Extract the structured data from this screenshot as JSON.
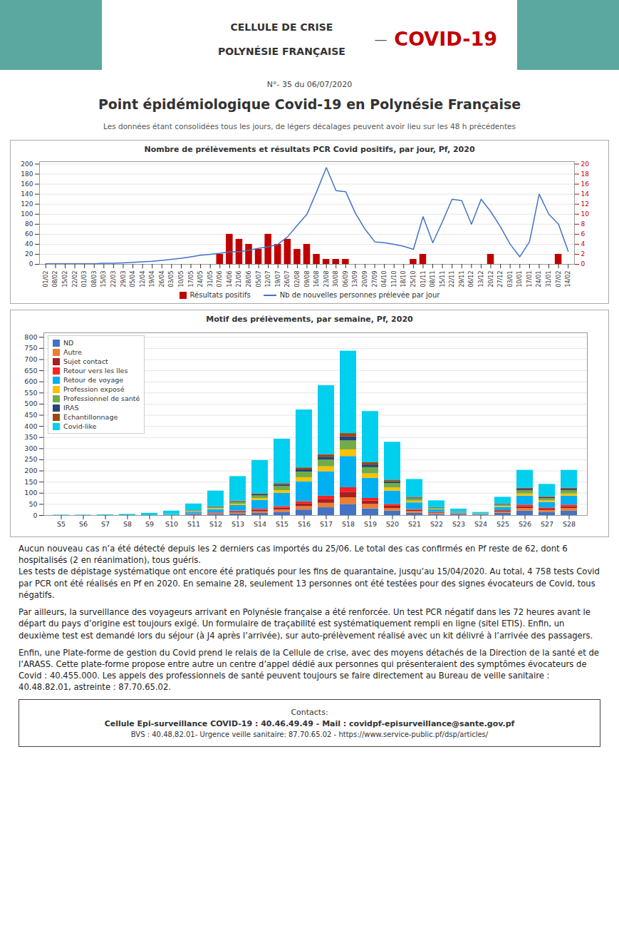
{
  "header_text1": "CELLULE DE CRISE",
  "header_text2": "POLYNÉSIE FRANÇAISE",
  "header_separator": "—",
  "covid_label": "COVID-19",
  "covid_color": "#c00000",
  "teal_color": "#5ba8a0",
  "numero": "N°- 35 du 06/07/2020",
  "title": "Point épidémiologique Covid-19 en Polynésie Française",
  "subtitle": "Les données étant consolidées tous les jours, de légers décalages peuvent avoir lieu sur les 48 h précédentes",
  "chart_data": [
    {
      "type": "bar",
      "title": "Nombre de prélèvements et résultats PCR Covid positifs, par jour, Pf, 2020",
      "categories": [
        "01/02",
        "08/02",
        "15/02",
        "22/02",
        "01/03",
        "08/03",
        "15/03",
        "22/03",
        "29/03",
        "05/04",
        "12/04",
        "19/04",
        "26/04",
        "03/05",
        "10/05",
        "17/05",
        "24/05",
        "31/05",
        "07/06",
        "14/06",
        "21/06",
        "28/06",
        "05/07",
        "12/07",
        "19/07",
        "26/07",
        "02/08",
        "09/08",
        "16/08",
        "23/08",
        "30/08",
        "06/09",
        "13/09",
        "20/09",
        "27/09",
        "04/10",
        "11/10",
        "18/10",
        "25/10",
        "01/11",
        "08/11",
        "15/11",
        "22/11",
        "29/11",
        "06/12",
        "13/12",
        "20/12",
        "27/12",
        "03/01",
        "10/01",
        "17/01",
        "24/01",
        "31/01",
        "07/02",
        "14/02"
      ],
      "series": [
        {
          "name": "Résultats positifs",
          "type": "bar",
          "color": "#c00000",
          "axis": "y2",
          "values": [
            0,
            0,
            0,
            0,
            0,
            0,
            0,
            0,
            0,
            0,
            0,
            0,
            0,
            0,
            0,
            0,
            0,
            0,
            2,
            6,
            5,
            4,
            3,
            6,
            4,
            5,
            3,
            4,
            2,
            1,
            1,
            1,
            0,
            0,
            0,
            0,
            0,
            0,
            1,
            2,
            0,
            0,
            0,
            0,
            0,
            0,
            2,
            0,
            0,
            0,
            0,
            0,
            0,
            2,
            0
          ]
        },
        {
          "name": "Nb de nouvelles personnes prélevée par jour",
          "type": "line",
          "color": "#4472c4",
          "values": [
            1,
            1,
            1,
            1,
            1,
            1,
            2,
            2,
            3,
            4,
            5,
            6,
            8,
            10,
            12,
            15,
            18,
            20,
            22,
            25,
            25,
            28,
            32,
            35,
            40,
            55,
            78,
            100,
            145,
            193,
            147,
            145,
            102,
            70,
            45,
            43,
            40,
            36,
            30,
            95,
            43,
            85,
            130,
            127,
            80,
            130,
            105,
            75,
            40,
            15,
            45,
            140,
            100,
            80,
            26
          ]
        }
      ],
      "ylim": [
        0,
        205
      ],
      "yticks": [
        0,
        20,
        40,
        60,
        80,
        100,
        120,
        140,
        160,
        180,
        200
      ],
      "y2lim": [
        0,
        20.5
      ],
      "y2ticks": [
        0,
        2,
        4,
        6,
        8,
        10,
        12,
        14,
        16,
        18,
        20
      ],
      "grid": true,
      "legend": "bottom"
    },
    {
      "type": "bar",
      "stacked": true,
      "title": "Motif des prélèvements, par semaine, Pf, 2020",
      "categories": [
        "S5",
        "S6",
        "S7",
        "S8",
        "S9",
        "S10",
        "S11",
        "S12",
        "S13",
        "S14",
        "S15",
        "S16",
        "S17",
        "S18",
        "S19",
        "S20",
        "S21",
        "S22",
        "S23",
        "S24",
        "S25",
        "S26",
        "S27",
        "S28"
      ],
      "series": [
        {
          "name": "ND",
          "color": "#4472c4",
          "values": [
            0,
            0,
            0,
            0,
            0,
            0,
            3,
            5,
            8,
            10,
            15,
            25,
            35,
            50,
            30,
            20,
            10,
            5,
            3,
            2,
            10,
            20,
            15,
            20
          ]
        },
        {
          "name": "Autre",
          "color": "#ed7d31",
          "values": [
            0,
            0,
            0,
            0,
            0,
            0,
            2,
            3,
            5,
            7,
            10,
            15,
            20,
            30,
            20,
            12,
            8,
            4,
            2,
            1,
            5,
            12,
            8,
            12
          ]
        },
        {
          "name": "Sujet contact",
          "color": "#a52020",
          "values": [
            0,
            0,
            0,
            0,
            0,
            0,
            1,
            2,
            4,
            6,
            8,
            12,
            18,
            25,
            15,
            10,
            5,
            3,
            1,
            1,
            4,
            8,
            6,
            8
          ]
        },
        {
          "name": "Retour vers les îles",
          "color": "#ff2020",
          "values": [
            0,
            0,
            0,
            0,
            0,
            0,
            1,
            2,
            3,
            5,
            7,
            10,
            14,
            20,
            12,
            8,
            4,
            2,
            1,
            0,
            3,
            7,
            5,
            7
          ]
        },
        {
          "name": "Retour de voyage",
          "color": "#00b0f0",
          "values": [
            0,
            0,
            0,
            0,
            0,
            3,
            8,
            15,
            25,
            40,
            60,
            90,
            110,
            140,
            90,
            60,
            30,
            12,
            5,
            3,
            15,
            40,
            25,
            40
          ]
        },
        {
          "name": "Profession exposé",
          "color": "#ffc000",
          "values": [
            0,
            0,
            0,
            0,
            0,
            1,
            2,
            4,
            6,
            8,
            12,
            18,
            22,
            30,
            20,
            14,
            8,
            3,
            1,
            1,
            4,
            10,
            7,
            10
          ]
        },
        {
          "name": "Professionnel de santé",
          "color": "#70ad47",
          "values": [
            0,
            0,
            0,
            0,
            0,
            1,
            3,
            5,
            8,
            12,
            18,
            25,
            30,
            40,
            28,
            20,
            10,
            4,
            2,
            1,
            6,
            14,
            10,
            14
          ]
        },
        {
          "name": "IRAS",
          "color": "#264478",
          "values": [
            0,
            0,
            0,
            0,
            0,
            0,
            1,
            2,
            3,
            5,
            7,
            10,
            13,
            18,
            12,
            8,
            4,
            2,
            1,
            0,
            3,
            7,
            5,
            7
          ]
        },
        {
          "name": "Echantillonnage",
          "color": "#9e480e",
          "values": [
            0,
            0,
            0,
            0,
            0,
            0,
            1,
            2,
            3,
            4,
            6,
            9,
            11,
            15,
            10,
            7,
            3,
            1,
            1,
            0,
            2,
            5,
            4,
            5
          ]
        },
        {
          "name": "Covid-like",
          "color": "#00cfee",
          "values": [
            2,
            2,
            3,
            5,
            10,
            15,
            30,
            70,
            110,
            150,
            200,
            260,
            310,
            370,
            230,
            170,
            80,
            30,
            12,
            5,
            30,
            80,
            55,
            80
          ]
        }
      ],
      "ylim": [
        0,
        820
      ],
      "yticks": [
        0,
        50,
        100,
        150,
        200,
        250,
        300,
        350,
        400,
        450,
        500,
        550,
        600,
        650,
        700,
        750,
        800
      ],
      "grid": true,
      "legend": "upper left"
    }
  ],
  "body": [
    "Aucun nouveau cas n’a été détecté depuis les 2 derniers cas importés du 25/06. Le total des cas confirmés en Pf reste de 62, dont 6 hospitalisés (2 en réanimation), tous guéris.\nLes tests de dépistage systématique ont encore été pratiqués pour les fins de quarantaine, jusqu’au 15/04/2020. Au total, 4 758 tests Covid par PCR ont été réalisés en Pf en 2020. En semaine 28, seulement 13 personnes ont été testées pour des signes évocateurs de Covid, tous négatifs.",
    "Par ailleurs, la surveillance des voyageurs arrivant en Polynésie française a été renforcée. Un test PCR négatif dans les 72 heures avant le départ du pays d’origine est toujours exigé. Un formulaire de traçabilité est systématiquement rempli en ligne (sitel ETIS). Enfin, un deuxième test est demandé lors du séjour (à J4 après l’arrivée), sur auto-prélèvement réalisé avec un kit délivré à l’arrivée des passagers.",
    "Enfin, une Plate-forme de gestion du Covid prend le relais de la Cellule de crise, avec des moyens détachés de la Direction de la santé et de l’ARASS. Cette plate-forme propose entre autre un centre d’appel dédié aux personnes qui présenteraient des symptômes évocateurs de Covid : 40.455.000. Les appels des professionnels de santé peuvent toujours se faire directement au Bureau de veille sanitaire : 40.48.82.01, astreinte : 87.70.65.02."
  ],
  "contact_title": "Contacts:",
  "contact_line1": "Cellule Epi-surveillance COVID-19 : 40.46.49.49 - Mail : covidpf-episurveillance@sante.gov.pf",
  "contact_line2": "BVS : 40.48.82.01- Urgence veille sanitaire: 87.70.65.02 - https://www.service-public.pf/dsp/articles/"
}
